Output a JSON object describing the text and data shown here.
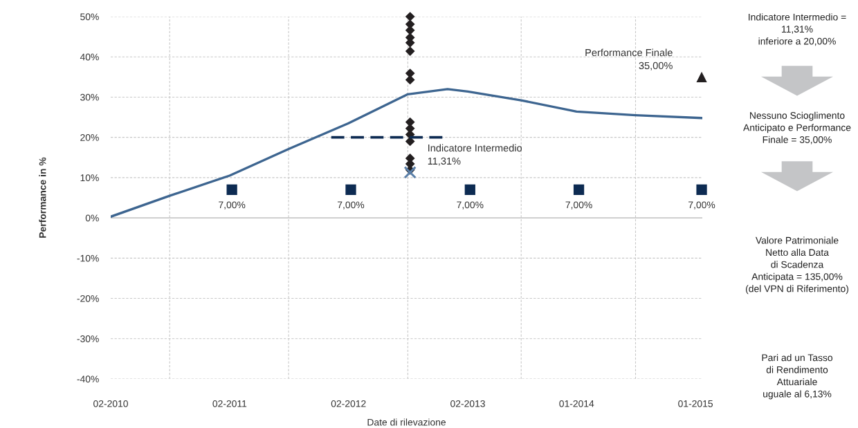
{
  "chart_data": {
    "type": "line",
    "xlabel": "Date di rilevazione",
    "ylabel": "Performance in %",
    "xlim": [
      "2010-02-01",
      "2015-01-22"
    ],
    "ylim": [
      -40,
      50
    ],
    "xticks": [
      {
        "value": "2010-02-01",
        "label": "02-2010"
      },
      {
        "value": "2010-08-01",
        "label": null
      },
      {
        "value": "2011-02-01",
        "label": "02-2011"
      },
      {
        "value": "2011-08-01",
        "label": null
      },
      {
        "value": "2012-02-01",
        "label": "02-2012"
      },
      {
        "value": "2012-08-01",
        "label": null
      },
      {
        "value": "2013-02-01",
        "label": "02-2013"
      },
      {
        "value": "2013-07-15",
        "label": null
      },
      {
        "value": "2014-01-01",
        "label": "01-2014"
      },
      {
        "value": "2014-07-01",
        "label": null
      },
      {
        "value": "2015-01-01",
        "label": "01-2015"
      }
    ],
    "yticks": [
      {
        "value": -40,
        "label": "-40%"
      },
      {
        "value": -30,
        "label": "-30%"
      },
      {
        "value": -20,
        "label": "-20%"
      },
      {
        "value": -10,
        "label": "-10%"
      },
      {
        "value": 0,
        "label": "0%"
      },
      {
        "value": 10,
        "label": "10%"
      },
      {
        "value": 20,
        "label": "20%"
      },
      {
        "value": 30,
        "label": "30%"
      },
      {
        "value": 40,
        "label": "40%"
      },
      {
        "value": 50,
        "label": "50%"
      }
    ],
    "grid": true,
    "series": [
      {
        "color": "#3d6590",
        "marker": "none",
        "line_style": "solid",
        "x": [
          "2010-02-01",
          "2010-08-01",
          "2011-02-01",
          "2011-08-01",
          "2012-02-01",
          "2012-08-01",
          "2012-12-01",
          "2013-02-01",
          "2013-07-15",
          "2014-01-01",
          "2014-07-01",
          "2015-01-20"
        ],
        "values": [
          0.3,
          5.5,
          10.5,
          17.1,
          23.5,
          30.7,
          32.0,
          31.4,
          29.2,
          26.4,
          25.5,
          24.8
        ]
      },
      {
        "type": "scatter",
        "color": "#231f20",
        "marker": "diamond",
        "x": [
          "2012-08-08",
          "2012-08-08",
          "2012-08-08",
          "2012-08-08",
          "2012-08-08",
          "2012-08-08",
          "2012-08-08",
          "2012-08-08",
          "2012-08-08",
          "2012-08-08",
          "2012-08-08",
          "2012-08-08",
          "2012-08-08",
          "2012-08-08",
          "2012-08-08"
        ],
        "values": [
          50,
          48.1,
          46.6,
          44.8,
          43.5,
          41.4,
          35.9,
          34.3,
          23.8,
          22.2,
          20.7,
          19.0,
          14.8,
          13.4,
          11.9
        ]
      },
      {
        "color": "#0d2b52",
        "marker": "none",
        "line_style": "dashed",
        "x": [
          "2011-12-10",
          "2012-11-15"
        ],
        "values": [
          20,
          20
        ]
      },
      {
        "type": "scatter",
        "color": "#5a7fa8",
        "marker": "cross",
        "x": [
          "2012-08-08"
        ],
        "values": [
          11.3
        ]
      },
      {
        "type": "scatter",
        "color": "#0d2b52",
        "marker": "square",
        "x": [
          "2011-02-08",
          "2012-02-08",
          "2013-02-08",
          "2014-01-08",
          "2015-01-20"
        ],
        "values": [
          7,
          7,
          7,
          7,
          7
        ],
        "value_labels": [
          "7,00%",
          "7,00%",
          "7,00%",
          "7,00%",
          "7,00%"
        ]
      },
      {
        "type": "scatter",
        "color": "#231f20",
        "marker": "triangle",
        "x": [
          "2015-01-20"
        ],
        "values": [
          35
        ]
      }
    ],
    "annotations": [
      {
        "text": "Indicatore Intermedio\n11,31%",
        "x": "2012-08-08",
        "y": 11.3
      },
      {
        "text": "Performance Finale\n35,00%",
        "x": "2015-01-20",
        "y": 35
      },
      "Indicatore Intermedio =\n11,31%\ninferiore a 20,00%",
      "Nessuno Scioglimento\nAnticipato e Performance\nFinale = 35,00%",
      "Valore Patrimoniale\nNetto alla Data\ndi Scadenza\nAnticipata = 135,00%\n(del VPN di Riferimento)",
      "Pari ad un Tasso\ndi Rendimento\nAttuariale\nuguale al 6,13%"
    ]
  }
}
